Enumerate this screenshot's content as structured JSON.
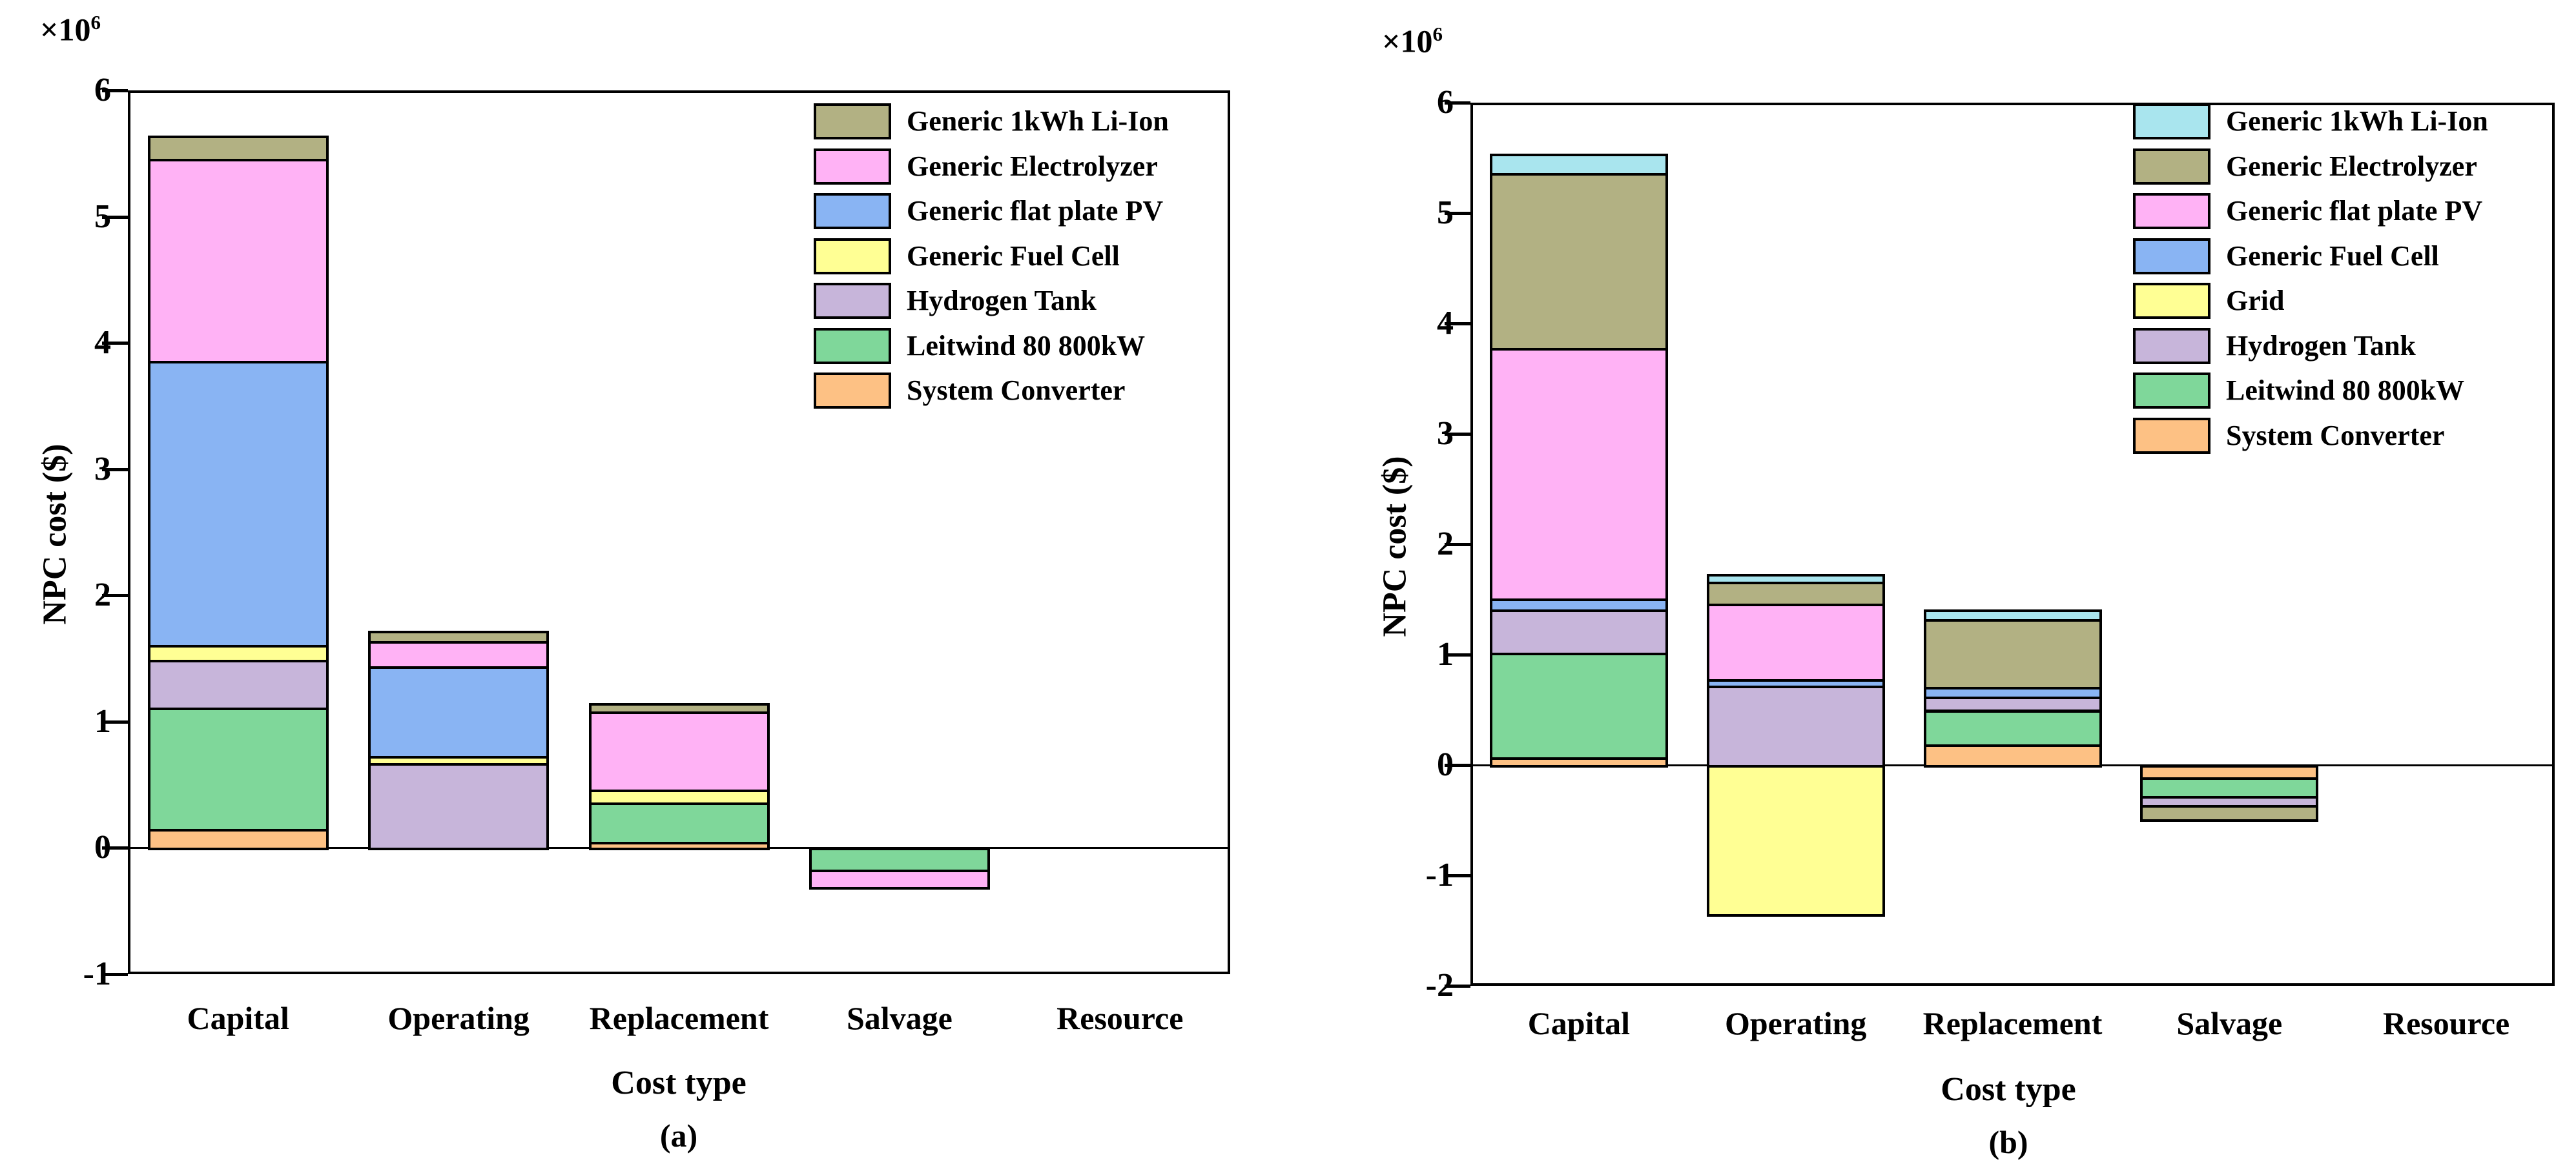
{
  "figure": {
    "background_color": "#ffffff",
    "text_color": "#000000"
  },
  "chart_data": [
    {
      "type": "bar",
      "stacked": true,
      "caption": "(a)",
      "xlabel": "Cost type",
      "ylabel": "NPC cost ($)",
      "scale": {
        "base": "×10",
        "exponent": "6"
      },
      "categories": [
        "Capital",
        "Operating",
        "Replacement",
        "Salvage",
        "Resource"
      ],
      "ylim": [
        -1,
        6
      ],
      "ytick_labels": [
        "6",
        "5",
        "4",
        "3",
        "2",
        "1",
        "0",
        "-1"
      ],
      "ytick_values": [
        6,
        5,
        4,
        3,
        2,
        1,
        0,
        -1
      ],
      "grid": "zero-line-only",
      "legend_position": "upper-right-inside",
      "series": [
        {
          "name": "Generic 1kWh Li-Ion",
          "color": "#b2b183",
          "values": [
            0.18,
            0.08,
            0.07,
            0,
            0
          ]
        },
        {
          "name": "Generic Electrolyzer",
          "color": "#ffb2f5",
          "values": [
            1.6,
            0.2,
            0.62,
            -0.14,
            0
          ]
        },
        {
          "name": "Generic flat plate PV",
          "color": "#89b4f3",
          "values": [
            2.25,
            0.71,
            0,
            0,
            0
          ]
        },
        {
          "name": "Generic Fuel Cell",
          "color": "#ffff94",
          "values": [
            0.12,
            0.06,
            0.1,
            0,
            0
          ]
        },
        {
          "name": "Hydrogen Tank",
          "color": "#c7b5da",
          "values": [
            0.38,
            0.67,
            0,
            0,
            0
          ]
        },
        {
          "name": "Leitwind 80 800kW",
          "color": "#7fd79a",
          "values": [
            0.96,
            0,
            0.31,
            -0.17,
            0
          ]
        },
        {
          "name": "System Converter",
          "color": "#fdc184",
          "values": [
            0.15,
            0,
            0.05,
            0,
            0
          ]
        }
      ]
    },
    {
      "type": "bar",
      "stacked": true,
      "caption": "(b)",
      "xlabel": "Cost type",
      "ylabel": "NPC cost ($)",
      "scale": {
        "base": "×10",
        "exponent": "6"
      },
      "categories": [
        "Capital",
        "Operating",
        "Replacement",
        "Salvage",
        "Resource"
      ],
      "ylim": [
        -2,
        6
      ],
      "ytick_labels": [
        "6",
        "5",
        "4",
        "3",
        "2",
        "1",
        "0",
        "-1",
        "-2"
      ],
      "ytick_values": [
        6,
        5,
        4,
        3,
        2,
        1,
        0,
        -1,
        -2
      ],
      "grid": "zero-line-only",
      "legend_position": "upper-right-inside",
      "series": [
        {
          "name": "Generic 1kWh Li-Ion",
          "color": "#a9e5ee",
          "values": [
            0.18,
            0.07,
            0.09,
            0,
            0
          ]
        },
        {
          "name": "Generic Electrolyzer",
          "color": "#b2b183",
          "values": [
            1.58,
            0.2,
            0.61,
            -0.13,
            0
          ]
        },
        {
          "name": "Generic flat plate PV",
          "color": "#ffb2f5",
          "values": [
            2.27,
            0.68,
            0,
            0,
            0
          ]
        },
        {
          "name": "Generic Fuel Cell",
          "color": "#89b4f3",
          "values": [
            0.1,
            0.06,
            0.09,
            0,
            0
          ]
        },
        {
          "name": "Grid",
          "color": "#ffff94",
          "values": [
            0,
            -1.35,
            0,
            0,
            0
          ]
        },
        {
          "name": "Hydrogen Tank",
          "color": "#c7b5da",
          "values": [
            0.39,
            0.72,
            0.12,
            -0.08,
            0
          ]
        },
        {
          "name": "Leitwind 80 800kW",
          "color": "#7fd79a",
          "values": [
            0.95,
            0,
            0.31,
            -0.17,
            0
          ]
        },
        {
          "name": "System Converter",
          "color": "#fdc184",
          "values": [
            0.07,
            0,
            0.19,
            -0.11,
            0
          ]
        }
      ]
    }
  ]
}
